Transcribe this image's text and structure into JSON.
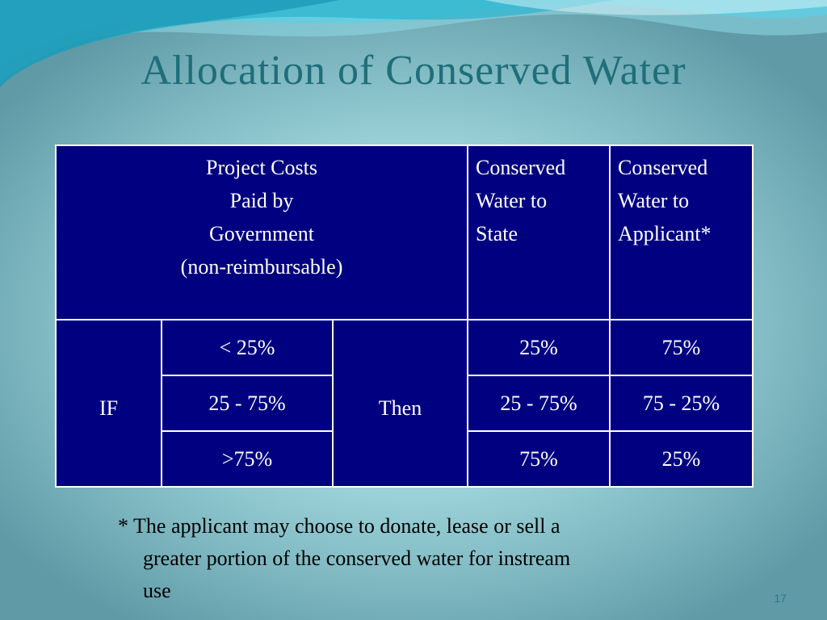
{
  "slide": {
    "title": "Allocation of Conserved Water",
    "page_number": "17"
  },
  "table": {
    "header": {
      "project_costs_lines": [
        "Project Costs",
        "Paid by",
        "Government",
        "(non-reimbursable)"
      ],
      "state_lines": [
        "Conserved",
        "Water to",
        "State"
      ],
      "applicant_lines": [
        "Conserved",
        "Water to",
        "Applicant*"
      ]
    },
    "if_label": "IF",
    "then_label": "Then",
    "rows": [
      {
        "cost": "< 25%",
        "state": "25%",
        "applicant": "75%"
      },
      {
        "cost": "25 - 75%",
        "state": "25 - 75%",
        "applicant": "75 - 25%"
      },
      {
        "cost": ">75%",
        "state": "75%",
        "applicant": "25%"
      }
    ]
  },
  "footnote": {
    "lines": [
      "* The applicant may choose to donate, lease or sell a",
      "greater portion of the conserved water for instream",
      "use"
    ]
  },
  "colors": {
    "table_background": "#000080",
    "title": "#1f6e7a",
    "wave_light": "#5ecfe3",
    "wave_dark": "#1b9ab8"
  }
}
